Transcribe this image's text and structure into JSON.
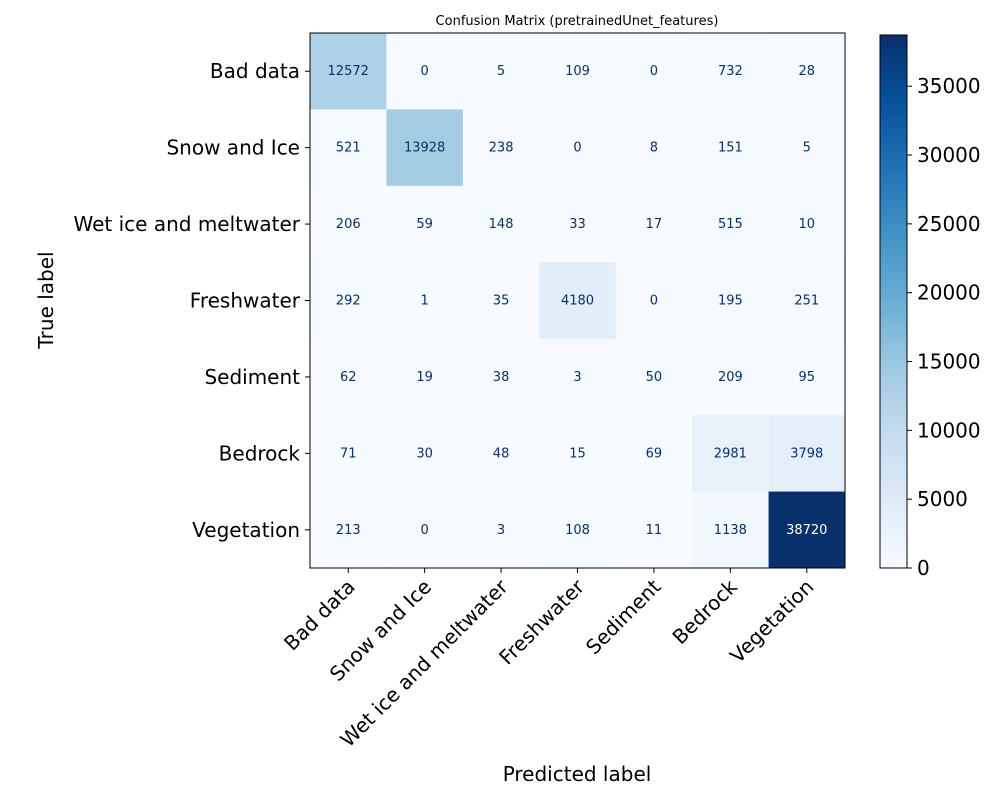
{
  "chart_data": {
    "type": "heatmap",
    "title": "Confusion Matrix (pretrainedUnet_features)",
    "xlabel": "Predicted label",
    "ylabel": "True label",
    "row_labels": [
      "Bad data",
      "Snow and Ice",
      "Wet ice and meltwater",
      "Freshwater",
      "Sediment",
      "Bedrock",
      "Vegetation"
    ],
    "col_labels": [
      "Bad data",
      "Snow and Ice",
      "Wet ice and meltwater",
      "Freshwater",
      "Sediment",
      "Bedrock",
      "Vegetation"
    ],
    "values": [
      [
        12572,
        0,
        5,
        109,
        0,
        732,
        28
      ],
      [
        521,
        13928,
        238,
        0,
        8,
        151,
        5
      ],
      [
        206,
        59,
        148,
        33,
        17,
        515,
        10
      ],
      [
        292,
        1,
        35,
        4180,
        0,
        195,
        251
      ],
      [
        62,
        19,
        38,
        3,
        50,
        209,
        95
      ],
      [
        71,
        30,
        48,
        15,
        69,
        2981,
        3798
      ],
      [
        213,
        0,
        3,
        108,
        11,
        1138,
        38720
      ]
    ],
    "colormap": "Blues",
    "colorbar": {
      "range": [
        0,
        38720
      ],
      "ticks": [
        0,
        5000,
        10000,
        15000,
        20000,
        25000,
        30000,
        35000
      ]
    },
    "text_color_dark": "#08306b",
    "text_color_light": "#ffffff"
  }
}
